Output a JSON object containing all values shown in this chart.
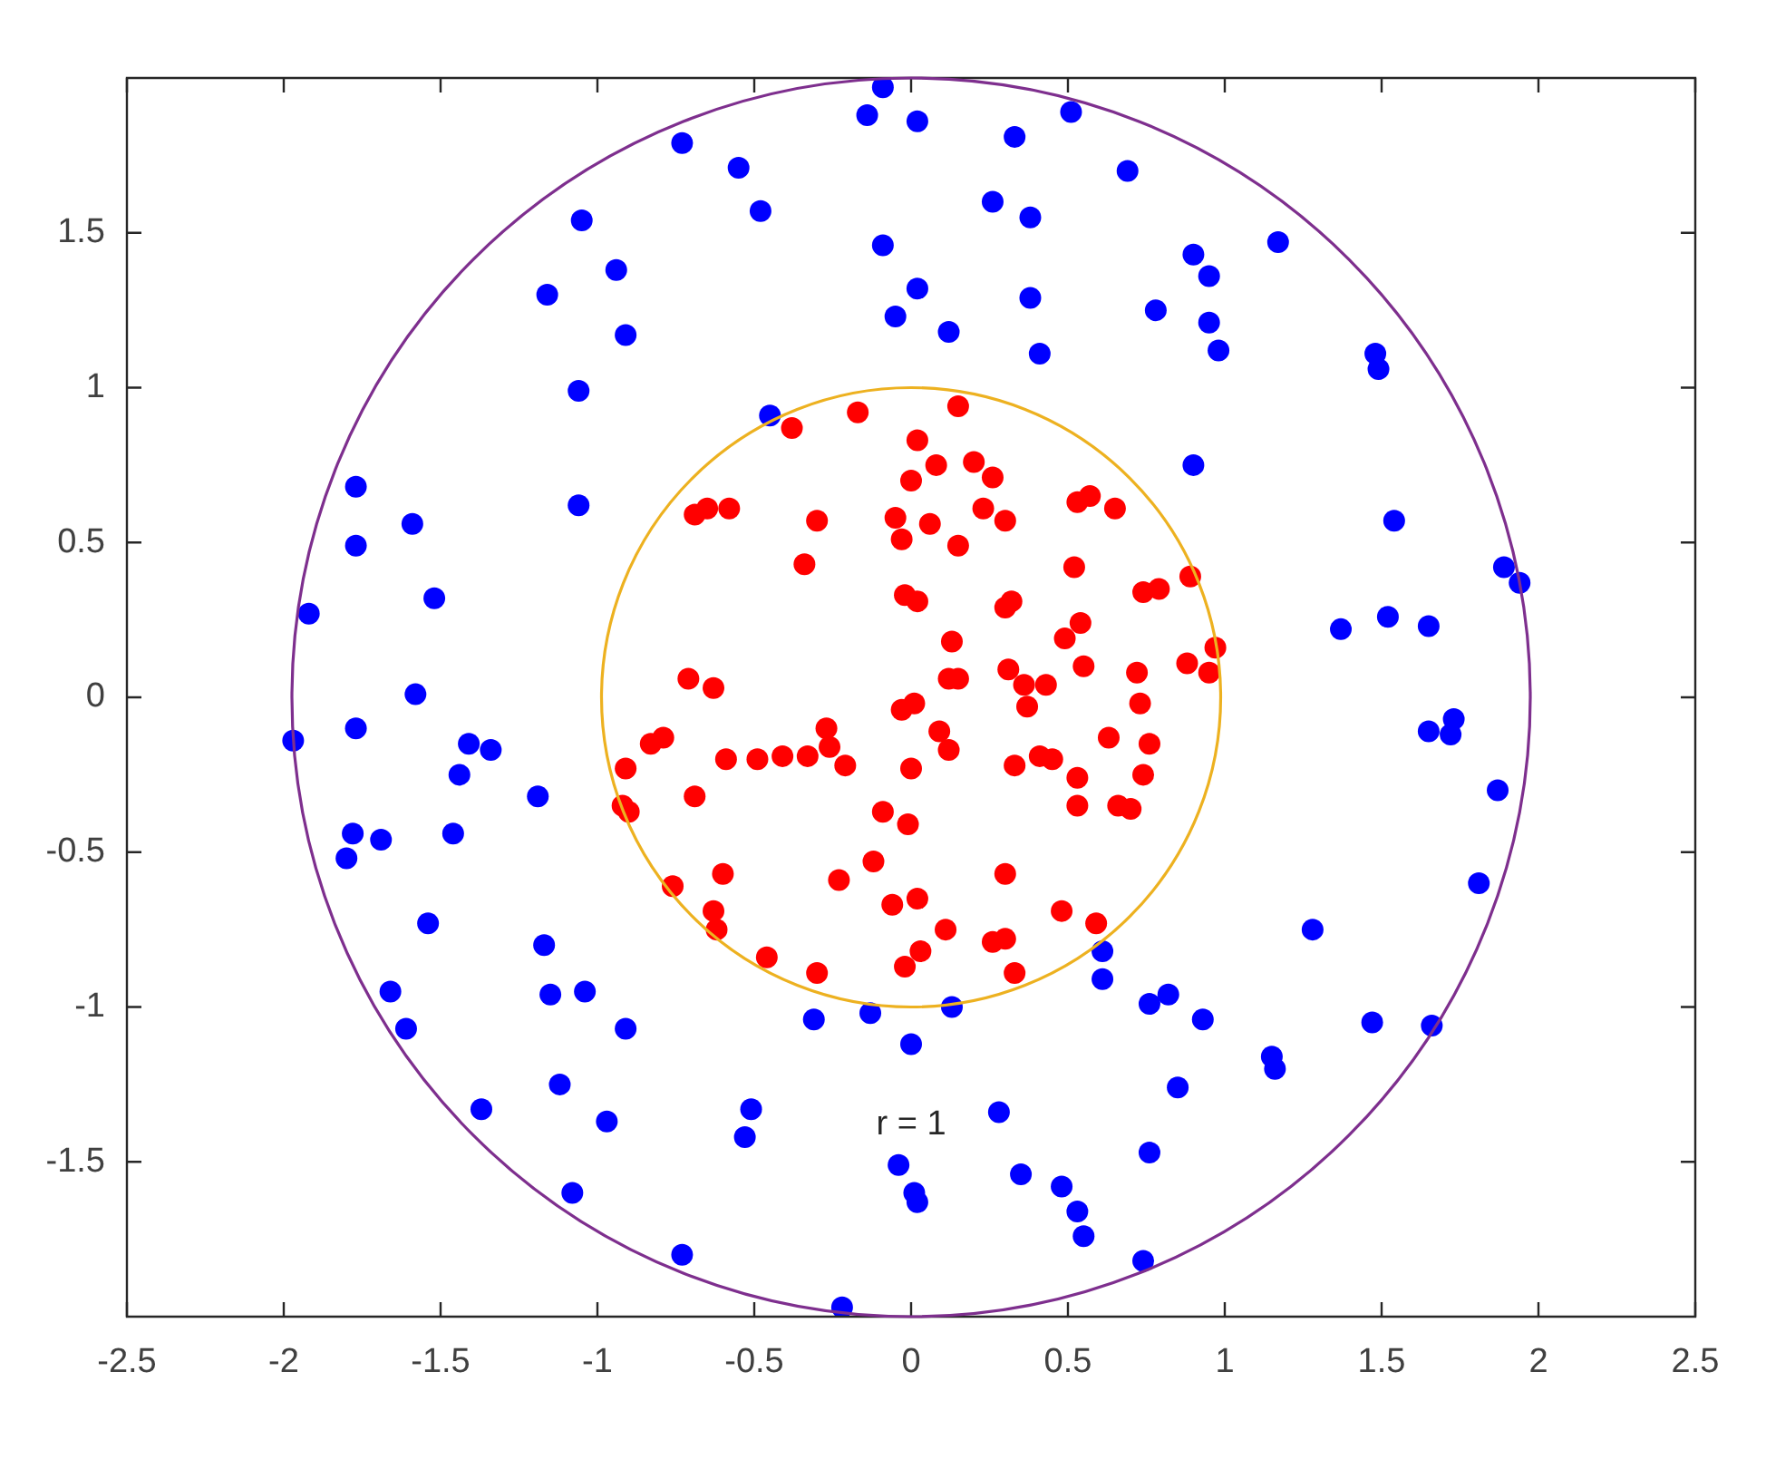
{
  "chart_data": {
    "type": "scatter",
    "xlim": [
      -2.5,
      2.5
    ],
    "ylim": [
      -2,
      2
    ],
    "xticks": [
      -2.5,
      -2,
      -1.5,
      -1,
      -0.5,
      0,
      0.5,
      1,
      1.5,
      2,
      2.5
    ],
    "yticks": [
      -1.5,
      -1,
      -0.5,
      0,
      0.5,
      1,
      1.5
    ],
    "grid": false,
    "legend": false,
    "marker": "circle",
    "annotations": [
      "r = 1"
    ],
    "series": [
      {
        "color": "#0000ff",
        "x": [
          -0.09,
          -0.14,
          0.02,
          0.33,
          0.51,
          -0.73,
          -0.55,
          -0.48,
          0.69,
          0.26,
          0.38,
          -1.05,
          -0.09,
          0.02,
          -0.05,
          0.12,
          0.38,
          0.41,
          -0.94,
          -1.16,
          -0.91,
          -1.06,
          -1.06,
          -0.45,
          0.9,
          0.95,
          0.78,
          0.95,
          0.98,
          1.17,
          1.48,
          1.49,
          0.9,
          1.54,
          1.89,
          1.94,
          1.37,
          1.52,
          1.65,
          -1.77,
          -1.59,
          -1.77,
          -1.52,
          -1.92,
          -1.58,
          -1.97,
          -1.77,
          -1.41,
          -1.34,
          -1.44,
          -1.19,
          -1.78,
          -1.69,
          -1.8,
          -1.46,
          -1.54,
          -1.17,
          -1.66,
          -1.15,
          -1.04,
          -1.61,
          -0.91,
          -1.12,
          -1.37,
          -0.97,
          -1.08,
          -0.73,
          0.61,
          0.61,
          0.76,
          -0.31,
          -0.13,
          0.13,
          0,
          -0.51,
          -0.53,
          0.28,
          -0.04,
          0.01,
          0.02,
          0.35,
          0.48,
          0.53,
          0.55,
          0.76,
          0.74,
          -0.22,
          1.65,
          1.73,
          1.72,
          1.87,
          1.81,
          1.28,
          0.82,
          0.93,
          1.47,
          1.66,
          1.15,
          1.16,
          0.85
        ],
        "values": [
          1.97,
          1.88,
          1.86,
          1.81,
          1.89,
          1.79,
          1.71,
          1.57,
          1.7,
          1.6,
          1.55,
          1.54,
          1.46,
          1.32,
          1.23,
          1.18,
          1.29,
          1.11,
          1.38,
          1.3,
          1.17,
          0.99,
          0.62,
          0.91,
          1.43,
          1.36,
          1.25,
          1.21,
          1.12,
          1.47,
          1.11,
          1.06,
          0.75,
          0.57,
          0.42,
          0.37,
          0.22,
          0.26,
          0.23,
          0.68,
          0.56,
          0.49,
          0.32,
          0.27,
          0.01,
          -0.14,
          -0.1,
          -0.15,
          -0.17,
          -0.25,
          -0.32,
          -0.44,
          -0.46,
          -0.52,
          -0.44,
          -0.73,
          -0.8,
          -0.95,
          -0.96,
          -0.95,
          -1.07,
          -1.07,
          -1.25,
          -1.33,
          -1.37,
          -1.6,
          -1.8,
          -0.82,
          -0.91,
          -0.99,
          -1.04,
          -1.02,
          -1,
          -1.12,
          -1.33,
          -1.42,
          -1.34,
          -1.51,
          -1.6,
          -1.63,
          -1.54,
          -1.58,
          -1.66,
          -1.74,
          -1.47,
          -1.82,
          -1.97,
          -0.11,
          -0.07,
          -0.12,
          -0.3,
          -0.6,
          -0.75,
          -0.96,
          -1.04,
          -1.05,
          -1.06,
          -1.16,
          -1.2,
          -1.26
        ]
      },
      {
        "color": "#ff0000",
        "x": [
          0.15,
          -0.17,
          -0.38,
          0.02,
          0.08,
          0.2,
          0.26,
          0,
          -0.69,
          -0.65,
          -0.58,
          -0.3,
          -0.05,
          -0.03,
          0.06,
          0.23,
          0.3,
          0.15,
          0.53,
          0.57,
          0.65,
          -0.34,
          0.52,
          -0.02,
          0.02,
          0.3,
          0.32,
          0.74,
          0.79,
          0.13,
          0.49,
          0.54,
          0.31,
          0.15,
          0.12,
          0.36,
          0.43,
          0.55,
          0.72,
          -0.71,
          -0.63,
          0.89,
          0.97,
          0.88,
          0.95,
          -0.03,
          0.01,
          0.37,
          0.73,
          -0.27,
          -0.26,
          0.09,
          0.12,
          -0.59,
          -0.49,
          -0.41,
          -0.33,
          -0.21,
          0,
          0.33,
          0.41,
          0.45,
          0.63,
          0.76,
          0.74,
          0.53,
          0.53,
          0.66,
          0.7,
          -0.09,
          -0.01,
          -0.12,
          -0.23,
          0.3,
          -0.6,
          -0.06,
          0.02,
          0.48,
          0.59,
          -0.63,
          -0.62,
          0.11,
          0.26,
          0.3,
          -0.46,
          -0.02,
          0.03,
          -0.3,
          0.33,
          -0.83,
          -0.79,
          -0.91,
          -0.92,
          -0.9,
          -0.69,
          -0.76
        ],
        "values": [
          0.94,
          0.92,
          0.87,
          0.83,
          0.75,
          0.76,
          0.71,
          0.7,
          0.59,
          0.61,
          0.61,
          0.57,
          0.58,
          0.51,
          0.56,
          0.61,
          0.57,
          0.49,
          0.63,
          0.65,
          0.61,
          0.43,
          0.42,
          0.33,
          0.31,
          0.29,
          0.31,
          0.34,
          0.35,
          0.18,
          0.19,
          0.24,
          0.09,
          0.06,
          0.06,
          0.04,
          0.04,
          0.1,
          0.08,
          0.06,
          0.03,
          0.39,
          0.16,
          0.11,
          0.08,
          -0.04,
          -0.02,
          -0.03,
          -0.02,
          -0.1,
          -0.16,
          -0.11,
          -0.17,
          -0.2,
          -0.2,
          -0.19,
          -0.19,
          -0.22,
          -0.23,
          -0.22,
          -0.19,
          -0.2,
          -0.13,
          -0.15,
          -0.25,
          -0.26,
          -0.35,
          -0.35,
          -0.36,
          -0.37,
          -0.41,
          -0.53,
          -0.59,
          -0.57,
          -0.57,
          -0.67,
          -0.65,
          -0.69,
          -0.73,
          -0.69,
          -0.75,
          -0.75,
          -0.79,
          -0.78,
          -0.84,
          -0.87,
          -0.82,
          -0.89,
          -0.89,
          -0.15,
          -0.13,
          -0.23,
          -0.35,
          -0.37,
          -0.32,
          -0.61
        ]
      }
    ]
  }
}
